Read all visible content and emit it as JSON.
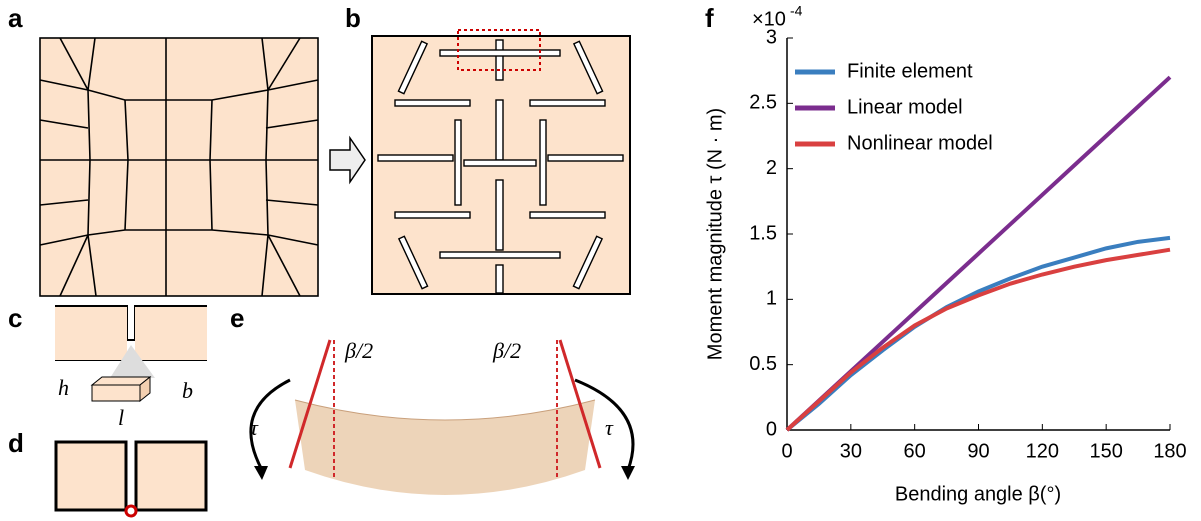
{
  "panels": {
    "labels": [
      "a",
      "b",
      "c",
      "d",
      "e",
      "f"
    ],
    "dims": [
      "h",
      "b",
      "l"
    ],
    "angles": [
      "β/2",
      "β/2"
    ],
    "torques": [
      "τ",
      "τ"
    ]
  },
  "chart_data": {
    "type": "line",
    "ylabel": "Moment magnitude τ (N · m)",
    "xlabel": "Bending angle β(°)",
    "y_multiplier": "×10",
    "y_exponent": "-4",
    "x": [
      0,
      15,
      30,
      45,
      60,
      75,
      90,
      105,
      120,
      135,
      150,
      165,
      180
    ],
    "series": [
      {
        "name": "Finite element",
        "color": "#3a7ebf",
        "values": [
          0,
          0.2,
          0.42,
          0.61,
          0.79,
          0.94,
          1.06,
          1.16,
          1.25,
          1.32,
          1.39,
          1.44,
          1.47
        ]
      },
      {
        "name": "Linear model",
        "color": "#7b2d8e",
        "values": [
          0,
          0.225,
          0.45,
          0.675,
          0.9,
          1.125,
          1.35,
          1.575,
          1.8,
          2.025,
          2.25,
          2.475,
          2.7
        ]
      },
      {
        "name": "Nonlinear model",
        "color": "#d94040",
        "values": [
          0,
          0.22,
          0.44,
          0.63,
          0.8,
          0.93,
          1.03,
          1.12,
          1.19,
          1.25,
          1.3,
          1.34,
          1.38
        ]
      }
    ],
    "xlim": [
      0,
      180
    ],
    "xticks": [
      0,
      30,
      60,
      90,
      120,
      150,
      180
    ],
    "ylim": [
      0,
      3
    ],
    "yticks": [
      0,
      0.5,
      1,
      1.5,
      2,
      2.5,
      3
    ],
    "grid": false,
    "legend": "top-left"
  }
}
